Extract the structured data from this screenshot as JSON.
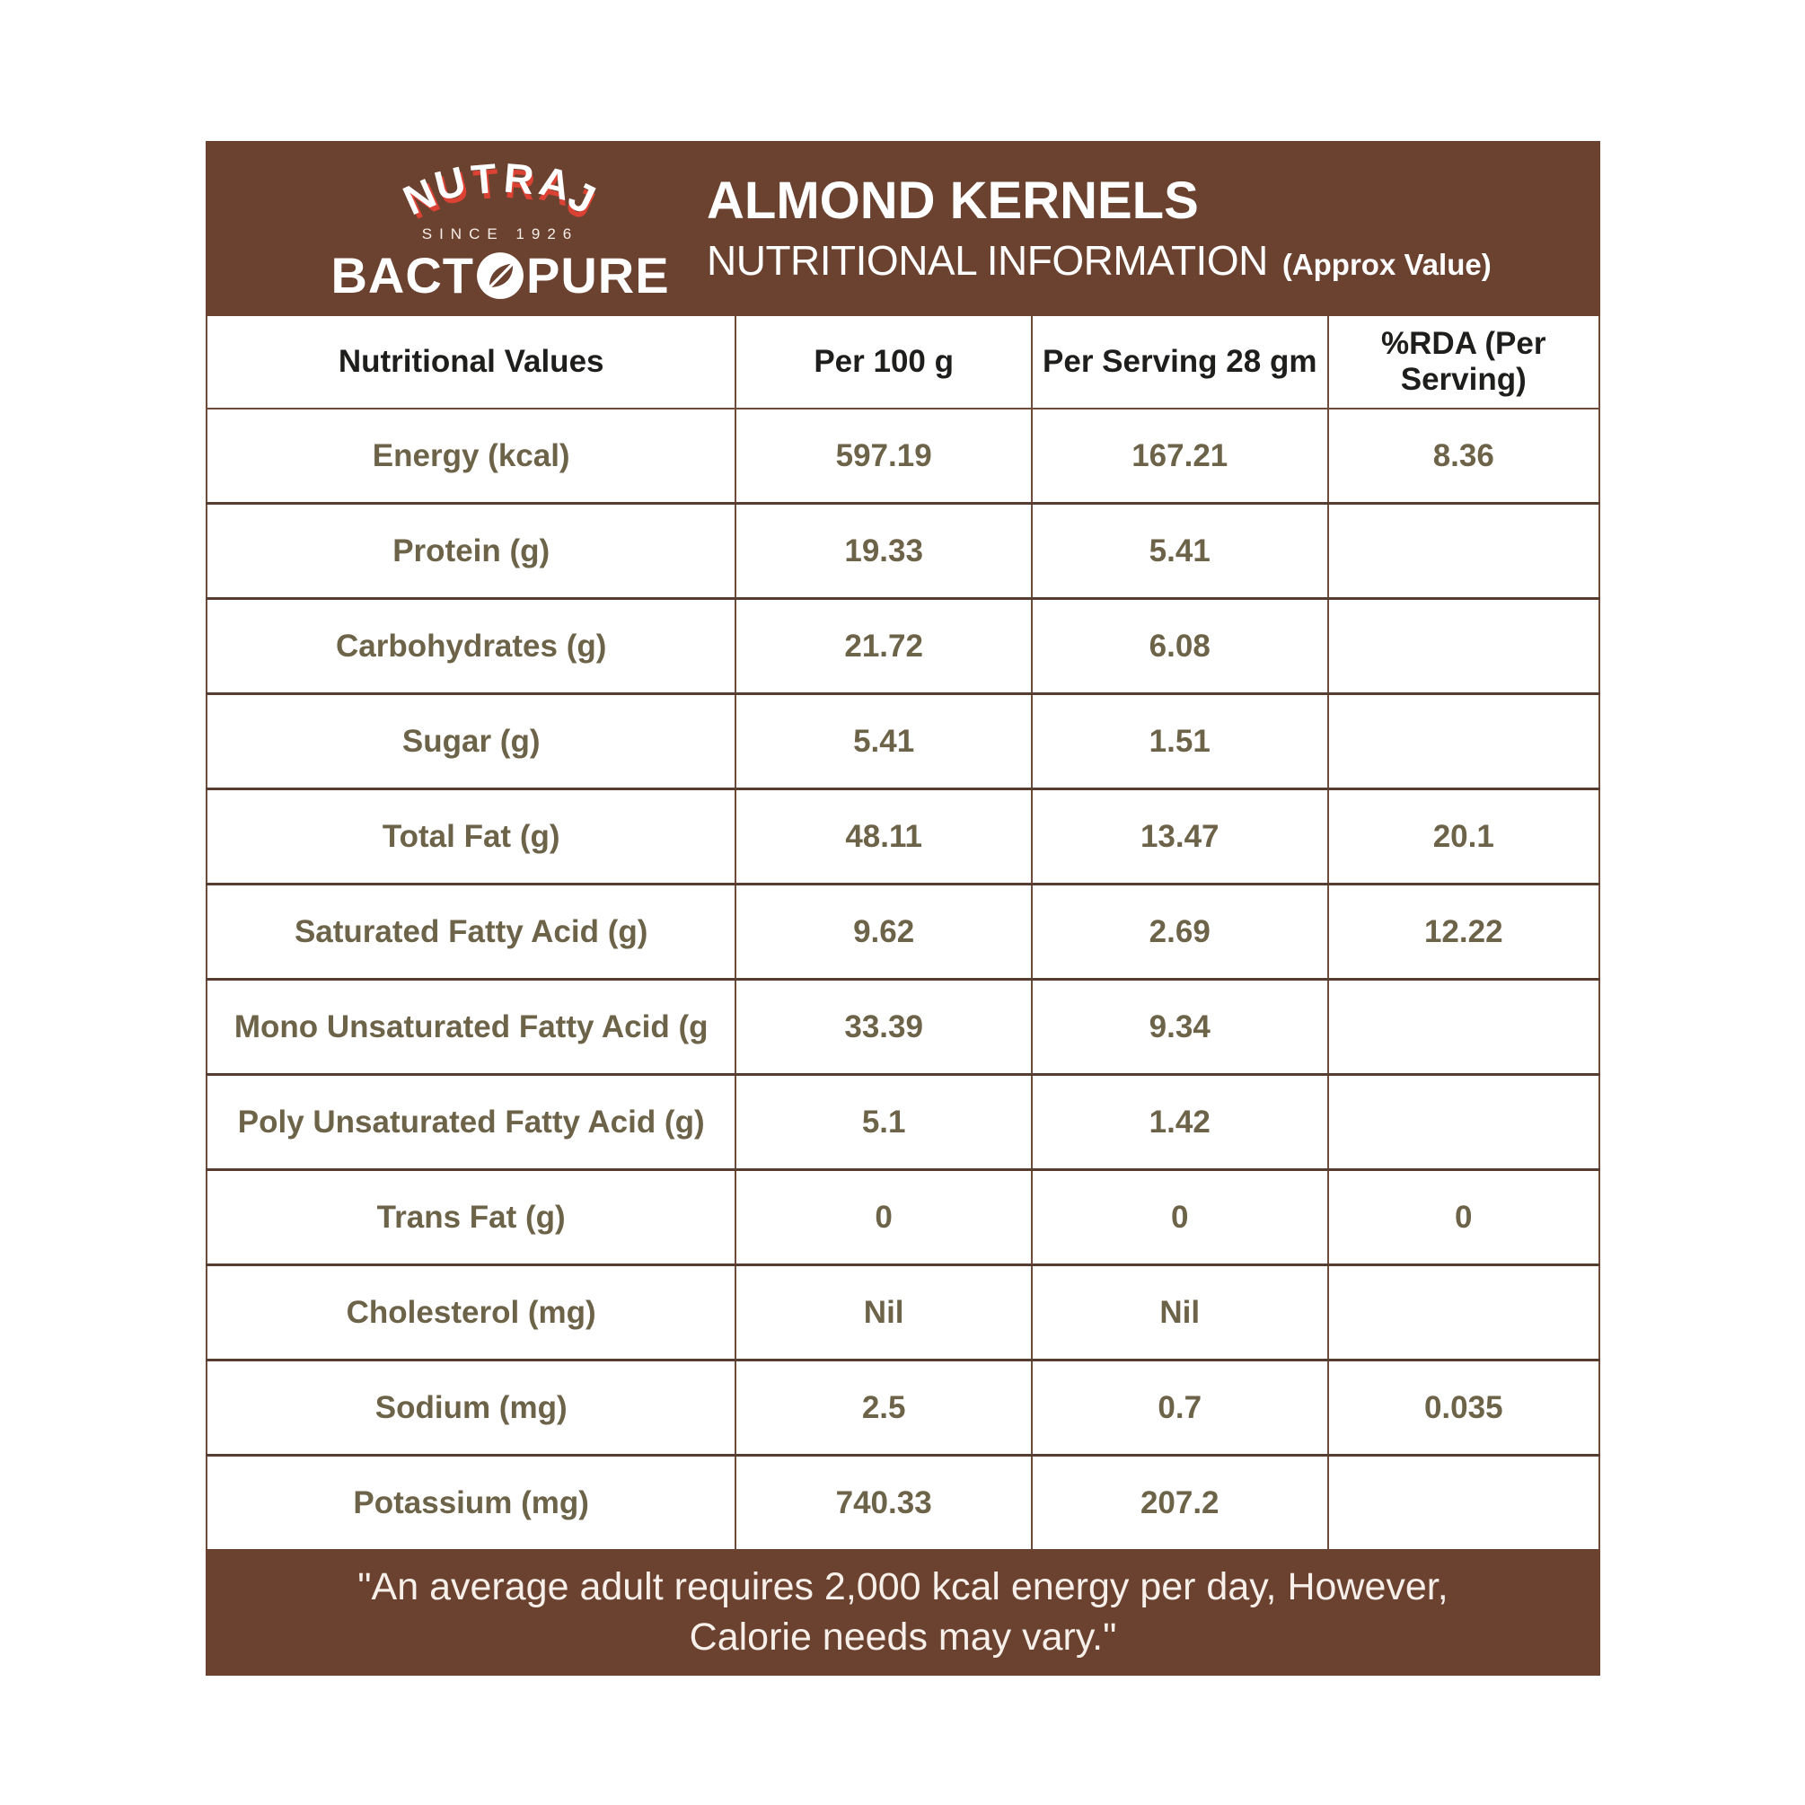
{
  "header": {
    "brand": {
      "name": "NUTRAJ",
      "since": "SINCE 1926",
      "product_prefix": "BACT",
      "product_leaf_letter": "O",
      "product_suffix": "PURE"
    },
    "title_line1": "ALMOND KERNELS",
    "title_line2": "NUTRITIONAL INFORMATION",
    "title_note": "(Approx Value)"
  },
  "table": {
    "columns": [
      "Nutritional Values",
      "Per 100 g",
      "Per Serving 28 gm",
      "%RDA (Per Serving)"
    ],
    "rows": [
      {
        "label": "Energy (kcal)",
        "per100": "597.19",
        "serving": "167.21",
        "rda": "8.36"
      },
      {
        "label": "Protein (g)",
        "per100": "19.33",
        "serving": "5.41",
        "rda": ""
      },
      {
        "label": "Carbohydrates (g)",
        "per100": "21.72",
        "serving": "6.08",
        "rda": ""
      },
      {
        "label": "Sugar (g)",
        "per100": "5.41",
        "serving": "1.51",
        "rda": ""
      },
      {
        "label": "Total Fat (g)",
        "per100": "48.11",
        "serving": "13.47",
        "rda": "20.1"
      },
      {
        "label": "Saturated  Fatty Acid (g)",
        "per100": "9.62",
        "serving": "2.69",
        "rda": "12.22"
      },
      {
        "label": "Mono Unsaturated Fatty Acid (g",
        "per100": "33.39",
        "serving": "9.34",
        "rda": ""
      },
      {
        "label": "Poly Unsaturated Fatty Acid (g)",
        "per100": "5.1",
        "serving": "1.42",
        "rda": ""
      },
      {
        "label": "Trans Fat (g)",
        "per100": "0",
        "serving": "0",
        "rda": "0"
      },
      {
        "label": "Cholesterol (mg)",
        "per100": "Nil",
        "serving": "Nil",
        "rda": ""
      },
      {
        "label": "Sodium (mg)",
        "per100": "2.5",
        "serving": "0.7",
        "rda": "0.035"
      },
      {
        "label": "Potassium (mg)",
        "per100": "740.33",
        "serving": "207.2",
        "rda": ""
      }
    ]
  },
  "footer": {
    "line1": "\"An average adult requires 2,000 kcal energy per day, However,",
    "line2": "Calorie needs may vary.\""
  },
  "colors": {
    "brand_brown": "#6B4130",
    "accent_red": "#DC4234",
    "value_text": "#6C6349",
    "header_text": "#1E1E1C"
  }
}
